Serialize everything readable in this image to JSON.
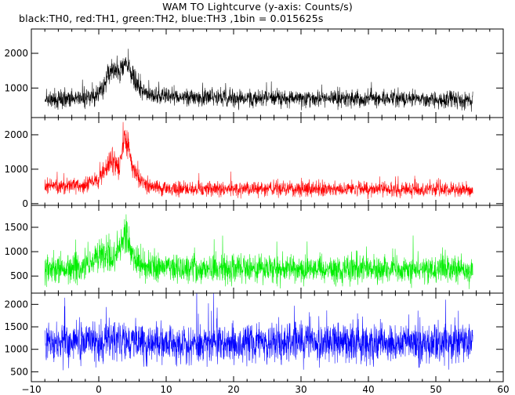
{
  "header": {
    "title": "WAM TO Lightcurve (y-axis: Counts/s)",
    "subtitle": "black:TH0, red:TH1, green:TH2, blue:TH3 ,1bin = 0.015625s"
  },
  "chart_data": {
    "type": "line",
    "title": "WAM TO Lightcurve (y-axis: Counts/s)",
    "subtitle": "black:TH0, red:TH1, green:TH2, blue:TH3 ,1bin = 0.015625s",
    "xlabel": "",
    "ylabel": "Counts/s",
    "xlim": [
      -10,
      60
    ],
    "x_ticks": [
      -10,
      0,
      10,
      20,
      30,
      40,
      50,
      60
    ],
    "x_range": [
      -8,
      55.5
    ],
    "bin_width": 0.015625,
    "grid": false,
    "series": [
      {
        "name": "TH0",
        "color": "#000000",
        "ylim": [
          150,
          2700
        ],
        "y_ticks": [
          1000,
          2000
        ],
        "x": [
          -8,
          -2,
          0,
          1,
          2,
          3,
          3.5,
          4,
          4.5,
          5,
          6,
          7,
          9,
          15,
          25,
          35,
          45,
          55.5
        ],
        "mean": [
          650,
          720,
          820,
          1200,
          1500,
          1450,
          1550,
          1800,
          1650,
          1300,
          1000,
          900,
          780,
          720,
          700,
          690,
          680,
          650
        ],
        "spread": [
          300,
          300,
          320,
          380,
          430,
          420,
          430,
          480,
          450,
          400,
          350,
          320,
          300,
          290,
          290,
          290,
          290,
          290
        ]
      },
      {
        "name": "TH1",
        "color": "#ff0000",
        "ylim": [
          -50,
          2500
        ],
        "y_ticks": [
          0,
          1000,
          2000
        ],
        "x": [
          -8,
          -2,
          0,
          1,
          2,
          3,
          3.5,
          4,
          4.5,
          5,
          6,
          7,
          9,
          15,
          25,
          35,
          45,
          55.5
        ],
        "mean": [
          500,
          520,
          700,
          1000,
          1300,
          1000,
          1500,
          1800,
          1600,
          1100,
          700,
          550,
          450,
          420,
          420,
          420,
          420,
          400
        ],
        "spread": [
          260,
          260,
          280,
          340,
          400,
          340,
          400,
          450,
          420,
          360,
          300,
          280,
          250,
          250,
          250,
          250,
          250,
          250
        ]
      },
      {
        "name": "TH2",
        "color": "#00ee00",
        "ylim": [
          150,
          1950
        ],
        "y_ticks": [
          500,
          1000,
          1500
        ],
        "x": [
          -8,
          -2,
          0,
          1,
          2,
          3,
          3.5,
          4,
          4.5,
          5,
          6,
          7,
          9,
          15,
          25,
          35,
          45,
          55.5
        ],
        "mean": [
          650,
          700,
          900,
          1000,
          800,
          1000,
          1200,
          1400,
          1100,
          900,
          750,
          700,
          680,
          650,
          640,
          640,
          640,
          620
        ],
        "spread": [
          350,
          350,
          380,
          400,
          360,
          380,
          420,
          450,
          400,
          370,
          350,
          340,
          330,
          330,
          330,
          330,
          330,
          330
        ]
      },
      {
        "name": "TH3",
        "color": "#0000ff",
        "ylim": [
          280,
          2250
        ],
        "y_ticks": [
          500,
          1000,
          1500,
          2000
        ],
        "x": [
          -8,
          -2,
          0,
          1,
          2,
          3,
          3.5,
          4,
          4.5,
          5,
          6,
          7,
          9,
          15,
          25,
          35,
          45,
          55.5
        ],
        "mean": [
          1150,
          1150,
          1150,
          1160,
          1160,
          1160,
          1170,
          1180,
          1170,
          1160,
          1150,
          1150,
          1150,
          1140,
          1150,
          1140,
          1140,
          1120
        ],
        "spread": [
          520,
          520,
          520,
          520,
          520,
          520,
          520,
          520,
          520,
          520,
          520,
          520,
          520,
          520,
          520,
          520,
          520,
          520
        ]
      }
    ]
  }
}
